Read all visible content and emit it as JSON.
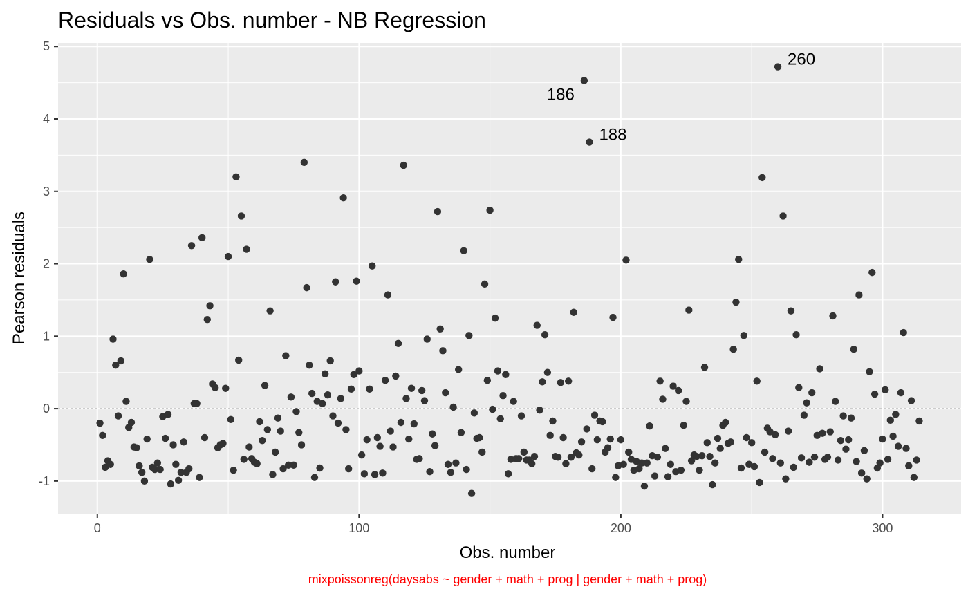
{
  "chart_data": {
    "type": "scatter",
    "title": "Residuals vs Obs. number - NB Regression",
    "xlabel": "Obs. number",
    "ylabel": "Pearson residuals",
    "caption": "mixpoissonreg(daysabs ~ gender + math + prog | gender + math + prog)",
    "xlim": [
      -15,
      330
    ],
    "ylim": [
      -1.45,
      5.05
    ],
    "xticks": [
      0,
      100,
      200,
      300
    ],
    "yticks": [
      -1,
      0,
      1,
      2,
      3,
      4,
      5
    ],
    "reference_line": 0,
    "grid": true,
    "colors": {
      "panel": "#ebebeb",
      "grid": "#ffffff",
      "point": "#333333",
      "caption": "#ff0000",
      "reference_line": "#7f7f7f"
    },
    "annotations": [
      {
        "label": "186",
        "x": 186,
        "y": 4.53,
        "side": "left"
      },
      {
        "label": "188",
        "x": 188,
        "y": 3.68,
        "side": "right"
      },
      {
        "label": "260",
        "x": 260,
        "y": 4.72,
        "side": "right"
      }
    ],
    "points": [
      [
        1,
        -0.2
      ],
      [
        2,
        -0.37
      ],
      [
        3,
        -0.81
      ],
      [
        4,
        -0.72
      ],
      [
        5,
        -0.77
      ],
      [
        6,
        0.96
      ],
      [
        7,
        0.6
      ],
      [
        8,
        -0.1
      ],
      [
        9,
        0.66
      ],
      [
        10,
        1.86
      ],
      [
        11,
        0.1
      ],
      [
        12,
        -0.26
      ],
      [
        13,
        -0.19
      ],
      [
        14,
        -0.53
      ],
      [
        15,
        -0.54
      ],
      [
        16,
        -0.79
      ],
      [
        17,
        -0.88
      ],
      [
        18,
        -1.0
      ],
      [
        19,
        -0.42
      ],
      [
        20,
        2.06
      ],
      [
        21,
        -0.81
      ],
      [
        22,
        -0.84
      ],
      [
        23,
        -0.75
      ],
      [
        24,
        -0.84
      ],
      [
        25,
        -0.11
      ],
      [
        26,
        -0.41
      ],
      [
        27,
        -0.08
      ],
      [
        28,
        -1.04
      ],
      [
        29,
        -0.5
      ],
      [
        30,
        -0.77
      ],
      [
        31,
        -0.99
      ],
      [
        32,
        -0.88
      ],
      [
        33,
        -0.46
      ],
      [
        34,
        -0.88
      ],
      [
        35,
        -0.83
      ],
      [
        36,
        2.25
      ],
      [
        37,
        0.07
      ],
      [
        38,
        0.07
      ],
      [
        39,
        -0.95
      ],
      [
        40,
        2.36
      ],
      [
        41,
        -0.4
      ],
      [
        42,
        1.23
      ],
      [
        43,
        1.42
      ],
      [
        44,
        0.34
      ],
      [
        45,
        0.29
      ],
      [
        46,
        -0.54
      ],
      [
        47,
        -0.5
      ],
      [
        48,
        -0.48
      ],
      [
        49,
        0.28
      ],
      [
        50,
        2.1
      ],
      [
        51,
        -0.15
      ],
      [
        52,
        -0.85
      ],
      [
        53,
        3.2
      ],
      [
        54,
        0.67
      ],
      [
        55,
        2.66
      ],
      [
        56,
        -0.7
      ],
      [
        57,
        2.2
      ],
      [
        58,
        -0.53
      ],
      [
        59,
        -0.69
      ],
      [
        60,
        -0.74
      ],
      [
        61,
        -0.76
      ],
      [
        62,
        -0.18
      ],
      [
        63,
        -0.44
      ],
      [
        64,
        0.32
      ],
      [
        65,
        -0.29
      ],
      [
        66,
        1.35
      ],
      [
        67,
        -0.91
      ],
      [
        68,
        -0.6
      ],
      [
        69,
        -0.13
      ],
      [
        70,
        -0.31
      ],
      [
        71,
        -0.83
      ],
      [
        72,
        0.73
      ],
      [
        73,
        -0.78
      ],
      [
        74,
        0.16
      ],
      [
        75,
        -0.78
      ],
      [
        76,
        -0.04
      ],
      [
        77,
        -0.33
      ],
      [
        78,
        -0.5
      ],
      [
        79,
        3.4
      ],
      [
        80,
        1.67
      ],
      [
        81,
        0.6
      ],
      [
        82,
        0.21
      ],
      [
        83,
        -0.95
      ],
      [
        84,
        0.1
      ],
      [
        85,
        -0.82
      ],
      [
        86,
        0.07
      ],
      [
        87,
        0.48
      ],
      [
        88,
        0.19
      ],
      [
        89,
        0.66
      ],
      [
        90,
        -0.1
      ],
      [
        91,
        1.75
      ],
      [
        92,
        -0.2
      ],
      [
        93,
        0.14
      ],
      [
        94,
        2.91
      ],
      [
        95,
        -0.29
      ],
      [
        96,
        -0.83
      ],
      [
        97,
        0.27
      ],
      [
        98,
        0.47
      ],
      [
        99,
        1.76
      ],
      [
        100,
        0.52
      ],
      [
        101,
        -0.64
      ],
      [
        102,
        -0.9
      ],
      [
        103,
        -0.43
      ],
      [
        104,
        0.27
      ],
      [
        105,
        1.97
      ],
      [
        106,
        -0.91
      ],
      [
        107,
        -0.4
      ],
      [
        108,
        -0.52
      ],
      [
        109,
        -0.89
      ],
      [
        110,
        0.39
      ],
      [
        111,
        1.57
      ],
      [
        112,
        -0.31
      ],
      [
        113,
        -0.53
      ],
      [
        114,
        0.45
      ],
      [
        115,
        0.9
      ],
      [
        116,
        -0.19
      ],
      [
        117,
        3.36
      ],
      [
        118,
        0.14
      ],
      [
        119,
        -0.42
      ],
      [
        120,
        0.28
      ],
      [
        121,
        -0.21
      ],
      [
        122,
        -0.7
      ],
      [
        123,
        -0.69
      ],
      [
        124,
        0.25
      ],
      [
        125,
        0.11
      ],
      [
        126,
        0.96
      ],
      [
        127,
        -0.87
      ],
      [
        128,
        -0.35
      ],
      [
        129,
        -0.51
      ],
      [
        130,
        2.72
      ],
      [
        131,
        1.1
      ],
      [
        132,
        0.8
      ],
      [
        133,
        0.22
      ],
      [
        134,
        -0.77
      ],
      [
        135,
        -0.88
      ],
      [
        136,
        0.02
      ],
      [
        137,
        -0.75
      ],
      [
        138,
        0.54
      ],
      [
        139,
        -0.33
      ],
      [
        140,
        2.18
      ],
      [
        141,
        -0.84
      ],
      [
        142,
        1.01
      ],
      [
        143,
        -1.17
      ],
      [
        144,
        -0.06
      ],
      [
        145,
        -0.41
      ],
      [
        146,
        -0.4
      ],
      [
        147,
        -0.6
      ],
      [
        148,
        1.72
      ],
      [
        149,
        0.39
      ],
      [
        150,
        2.74
      ],
      [
        151,
        -0.01
      ],
      [
        152,
        1.25
      ],
      [
        153,
        0.52
      ],
      [
        154,
        -0.14
      ],
      [
        155,
        0.18
      ],
      [
        156,
        0.47
      ],
      [
        157,
        -0.9
      ],
      [
        158,
        -0.7
      ],
      [
        159,
        0.1
      ],
      [
        160,
        -0.69
      ],
      [
        161,
        -0.69
      ],
      [
        162,
        -0.1
      ],
      [
        163,
        -0.6
      ],
      [
        164,
        -0.71
      ],
      [
        165,
        -0.71
      ],
      [
        166,
        -0.76
      ],
      [
        167,
        -0.66
      ],
      [
        168,
        1.15
      ],
      [
        169,
        -0.02
      ],
      [
        170,
        0.37
      ],
      [
        171,
        1.02
      ],
      [
        172,
        0.5
      ],
      [
        173,
        -0.37
      ],
      [
        174,
        -0.17
      ],
      [
        175,
        -0.66
      ],
      [
        176,
        -0.67
      ],
      [
        177,
        0.36
      ],
      [
        178,
        -0.4
      ],
      [
        179,
        -0.76
      ],
      [
        180,
        0.38
      ],
      [
        181,
        -0.67
      ],
      [
        182,
        1.33
      ],
      [
        183,
        -0.61
      ],
      [
        184,
        -0.64
      ],
      [
        185,
        -0.46
      ],
      [
        186,
        4.53
      ],
      [
        187,
        -0.28
      ],
      [
        188,
        3.68
      ],
      [
        189,
        -0.83
      ],
      [
        190,
        -0.09
      ],
      [
        191,
        -0.43
      ],
      [
        192,
        -0.17
      ],
      [
        193,
        -0.18
      ],
      [
        194,
        -0.6
      ],
      [
        195,
        -0.54
      ],
      [
        196,
        -0.42
      ],
      [
        197,
        1.26
      ],
      [
        198,
        -0.95
      ],
      [
        199,
        -0.79
      ],
      [
        200,
        -0.43
      ],
      [
        201,
        -0.77
      ],
      [
        202,
        2.05
      ],
      [
        203,
        -0.6
      ],
      [
        204,
        -0.7
      ],
      [
        205,
        -0.85
      ],
      [
        206,
        -0.73
      ],
      [
        207,
        -0.83
      ],
      [
        208,
        -0.75
      ],
      [
        209,
        -1.07
      ],
      [
        210,
        -0.75
      ],
      [
        211,
        -0.24
      ],
      [
        212,
        -0.65
      ],
      [
        213,
        -0.93
      ],
      [
        214,
        -0.67
      ],
      [
        215,
        0.38
      ],
      [
        216,
        0.13
      ],
      [
        217,
        -0.55
      ],
      [
        218,
        -0.94
      ],
      [
        219,
        -0.77
      ],
      [
        220,
        0.31
      ],
      [
        221,
        -0.87
      ],
      [
        222,
        0.25
      ],
      [
        223,
        -0.85
      ],
      [
        224,
        -0.23
      ],
      [
        225,
        0.1
      ],
      [
        226,
        1.36
      ],
      [
        227,
        -0.72
      ],
      [
        228,
        -0.64
      ],
      [
        229,
        -0.66
      ],
      [
        230,
        -0.85
      ],
      [
        231,
        -0.65
      ],
      [
        232,
        0.57
      ],
      [
        233,
        -0.47
      ],
      [
        234,
        -0.66
      ],
      [
        235,
        -1.05
      ],
      [
        236,
        -0.75
      ],
      [
        237,
        -0.41
      ],
      [
        238,
        -0.55
      ],
      [
        239,
        -0.23
      ],
      [
        240,
        -0.19
      ],
      [
        241,
        -0.48
      ],
      [
        242,
        -0.46
      ],
      [
        243,
        0.82
      ],
      [
        244,
        1.47
      ],
      [
        245,
        2.06
      ],
      [
        246,
        -0.82
      ],
      [
        247,
        1.01
      ],
      [
        248,
        -0.4
      ],
      [
        249,
        -0.77
      ],
      [
        250,
        -0.47
      ],
      [
        251,
        -0.8
      ],
      [
        252,
        0.38
      ],
      [
        253,
        -1.02
      ],
      [
        254,
        3.19
      ],
      [
        255,
        -0.6
      ],
      [
        256,
        -0.27
      ],
      [
        257,
        -0.32
      ],
      [
        258,
        -0.69
      ],
      [
        259,
        -0.36
      ],
      [
        260,
        4.72
      ],
      [
        261,
        -0.75
      ],
      [
        262,
        2.66
      ],
      [
        263,
        -0.97
      ],
      [
        264,
        -0.31
      ],
      [
        265,
        1.35
      ],
      [
        266,
        -0.81
      ],
      [
        267,
        1.02
      ],
      [
        268,
        0.29
      ],
      [
        269,
        -0.68
      ],
      [
        270,
        -0.09
      ],
      [
        271,
        0.08
      ],
      [
        272,
        -0.74
      ],
      [
        273,
        0.22
      ],
      [
        274,
        -0.67
      ],
      [
        275,
        -0.37
      ],
      [
        276,
        0.55
      ],
      [
        277,
        -0.34
      ],
      [
        278,
        -0.7
      ],
      [
        279,
        -0.67
      ],
      [
        280,
        -0.32
      ],
      [
        281,
        1.28
      ],
      [
        282,
        0.1
      ],
      [
        283,
        -0.71
      ],
      [
        284,
        -0.44
      ],
      [
        285,
        -0.1
      ],
      [
        286,
        -0.56
      ],
      [
        287,
        -0.43
      ],
      [
        288,
        -0.13
      ],
      [
        289,
        0.82
      ],
      [
        290,
        -0.73
      ],
      [
        291,
        1.57
      ],
      [
        292,
        -0.89
      ],
      [
        293,
        -0.58
      ],
      [
        294,
        -0.97
      ],
      [
        295,
        0.51
      ],
      [
        296,
        1.88
      ],
      [
        297,
        0.2
      ],
      [
        298,
        -0.82
      ],
      [
        299,
        -0.75
      ],
      [
        300,
        -0.42
      ],
      [
        301,
        0.26
      ],
      [
        302,
        -0.7
      ],
      [
        303,
        -0.16
      ],
      [
        304,
        -0.38
      ],
      [
        305,
        -0.08
      ],
      [
        306,
        -0.52
      ],
      [
        307,
        0.22
      ],
      [
        308,
        1.05
      ],
      [
        309,
        -0.55
      ],
      [
        310,
        -0.79
      ],
      [
        311,
        0.11
      ],
      [
        312,
        -0.95
      ],
      [
        313,
        -0.71
      ],
      [
        314,
        -0.17
      ]
    ]
  }
}
